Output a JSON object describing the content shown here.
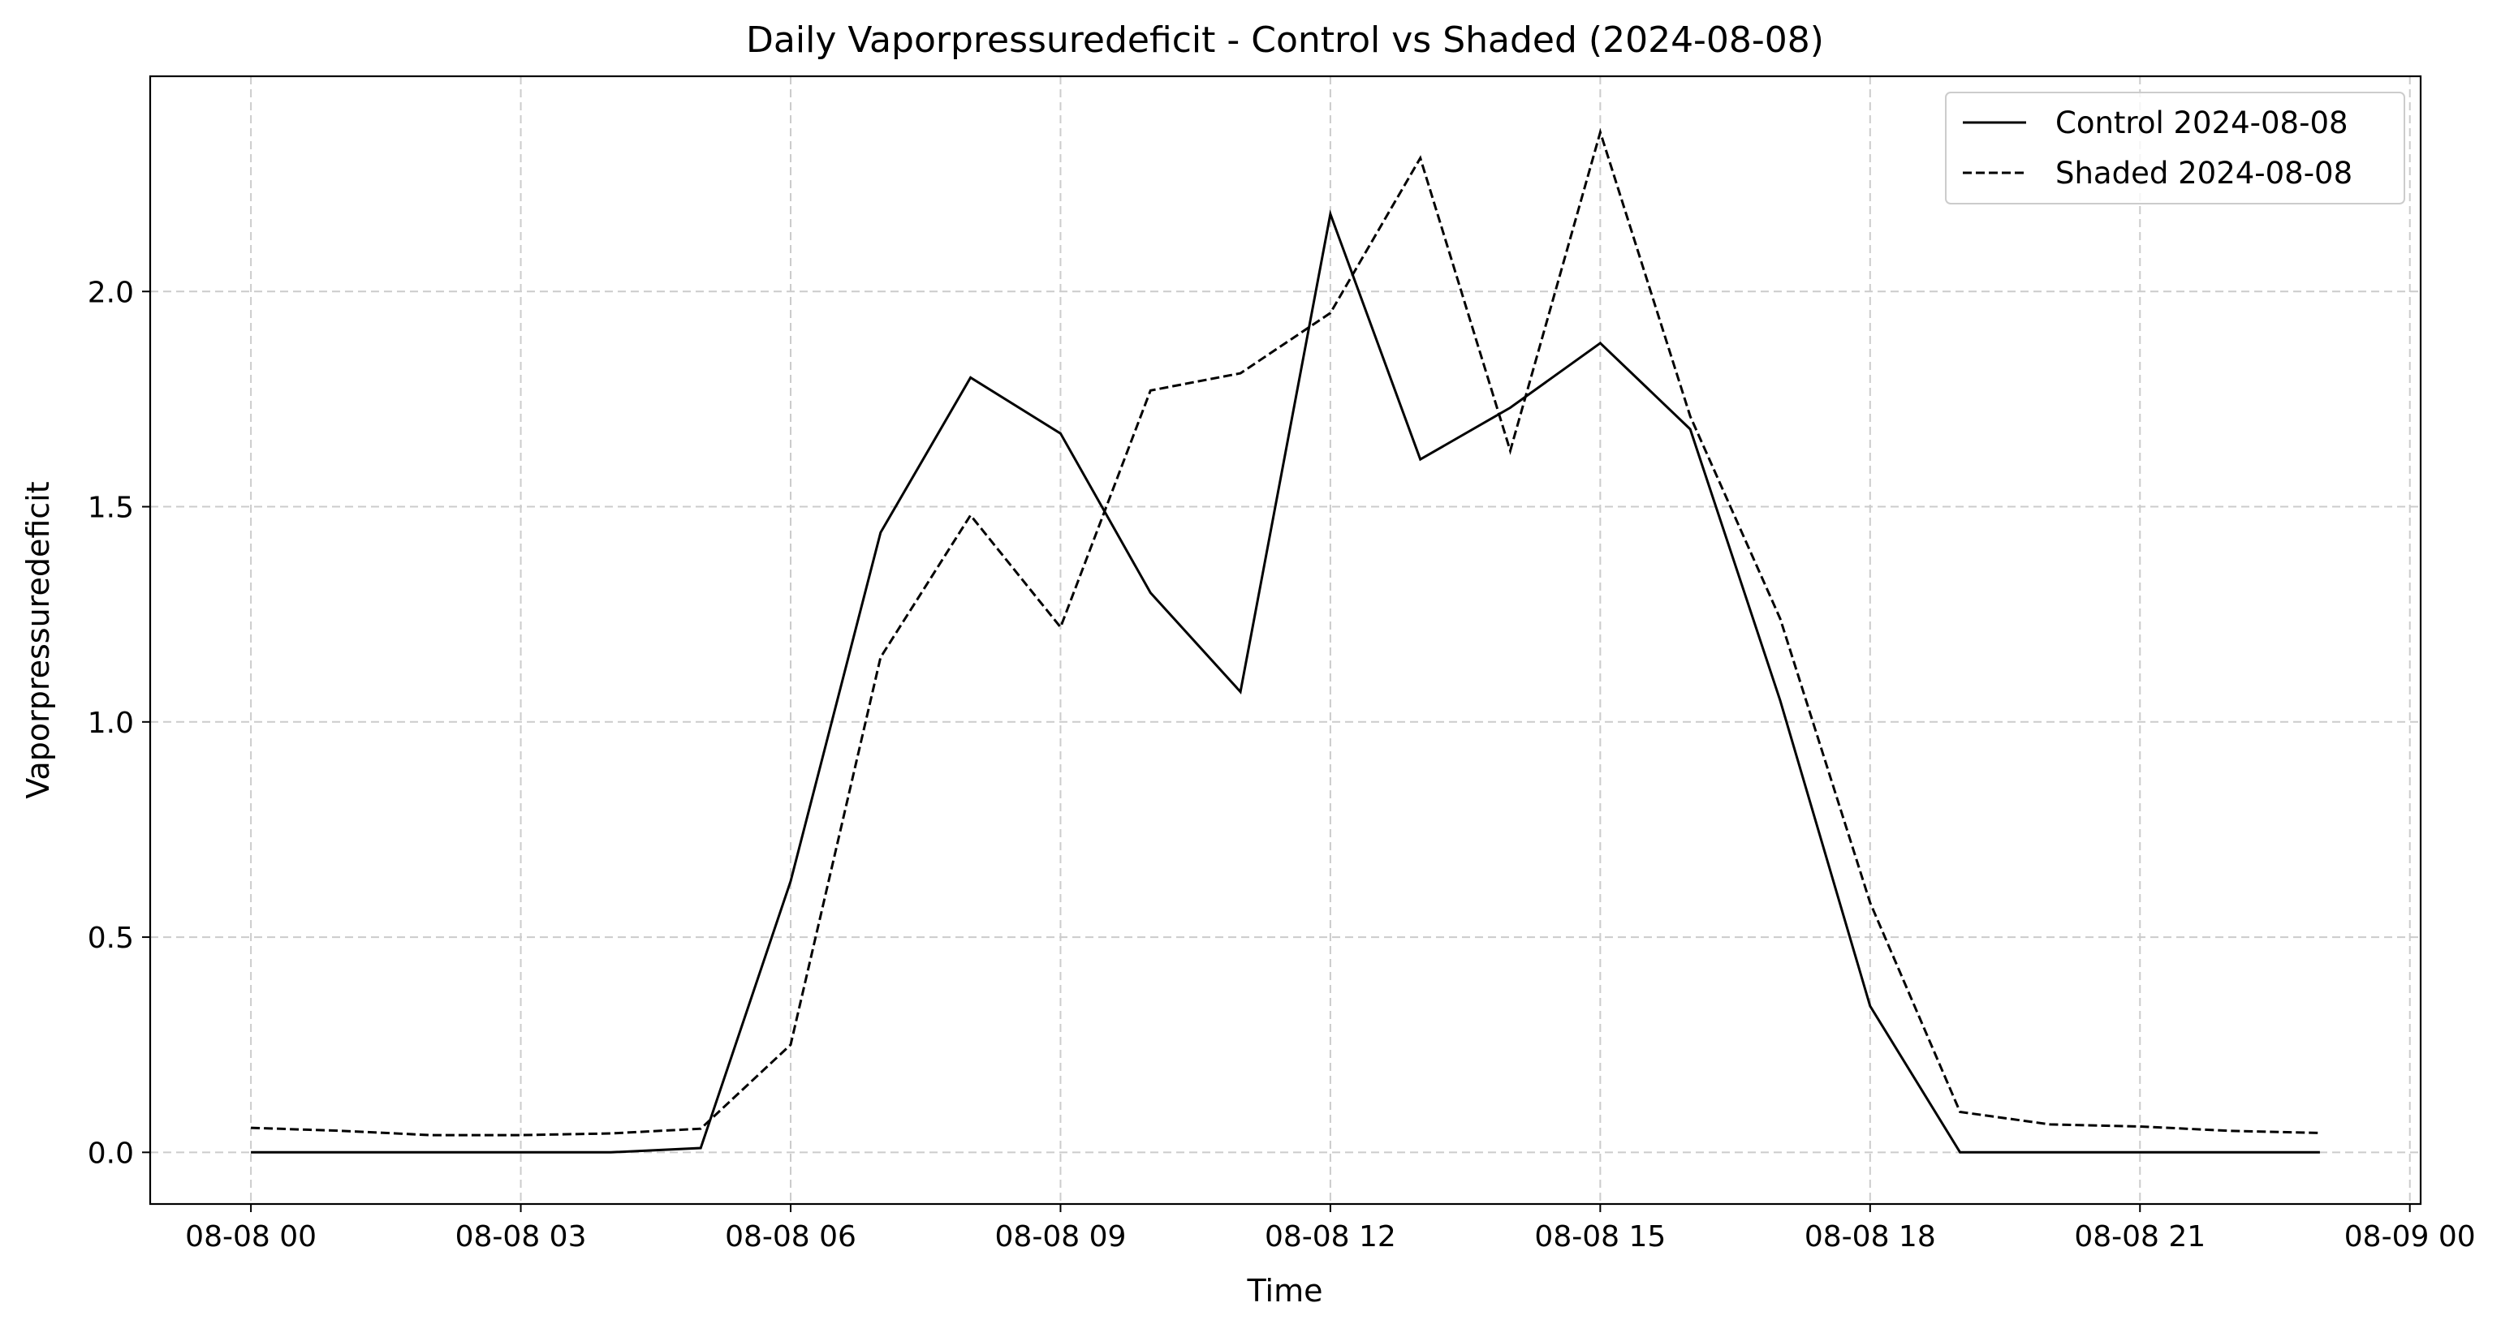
{
  "chart_data": {
    "type": "line",
    "title": "Daily Vaporpressuredeficit - Control vs Shaded (2024-08-08)",
    "xlabel": "Time",
    "ylabel": "Vaporpressuredeficit",
    "x_unit": "hours from 2024-08-08 00:00",
    "xlim": [
      -1.12,
      24.12
    ],
    "ylim": [
      -0.12,
      2.5
    ],
    "xticks": [
      {
        "value": 0,
        "label": "08-08 00"
      },
      {
        "value": 3,
        "label": "08-08 03"
      },
      {
        "value": 6,
        "label": "08-08 06"
      },
      {
        "value": 9,
        "label": "08-08 09"
      },
      {
        "value": 12,
        "label": "08-08 12"
      },
      {
        "value": 15,
        "label": "08-08 15"
      },
      {
        "value": 18,
        "label": "08-08 18"
      },
      {
        "value": 21,
        "label": "08-08 21"
      },
      {
        "value": 24,
        "label": "08-09 00"
      }
    ],
    "yticks": [
      {
        "value": 0.0,
        "label": "0.0"
      },
      {
        "value": 0.5,
        "label": "0.5"
      },
      {
        "value": 1.0,
        "label": "1.0"
      },
      {
        "value": 1.5,
        "label": "1.5"
      },
      {
        "value": 2.0,
        "label": "2.0"
      }
    ],
    "grid": true,
    "legend_position": "top-right",
    "series": [
      {
        "name": "Control 2024-08-08",
        "style": "solid",
        "color": "#000000",
        "x": [
          0,
          1,
          2,
          3,
          4,
          5,
          6,
          7,
          8,
          9,
          10,
          11,
          12,
          13,
          14,
          15,
          16,
          17,
          18,
          19,
          20,
          21,
          22,
          23
        ],
        "values": [
          0.0,
          0.0,
          0.0,
          0.0,
          0.0,
          0.01,
          0.63,
          1.44,
          1.8,
          1.67,
          1.3,
          1.07,
          2.18,
          1.61,
          1.73,
          1.88,
          1.68,
          1.05,
          0.34,
          0.0,
          0.0,
          0.0,
          0.0,
          0.0
        ]
      },
      {
        "name": "Shaded 2024-08-08",
        "style": "dashed",
        "color": "#000000",
        "x": [
          0,
          1,
          2,
          3,
          4,
          5,
          6,
          7,
          8,
          9,
          10,
          11,
          12,
          13,
          14,
          15,
          16,
          17,
          18,
          19,
          20,
          21,
          22,
          23
        ],
        "values": [
          0.057,
          0.05,
          0.04,
          0.04,
          0.044,
          0.055,
          0.25,
          1.15,
          1.48,
          1.22,
          1.77,
          1.81,
          1.95,
          2.31,
          1.63,
          2.37,
          1.71,
          1.24,
          0.58,
          0.094,
          0.065,
          0.06,
          0.05,
          0.045
        ]
      }
    ]
  }
}
